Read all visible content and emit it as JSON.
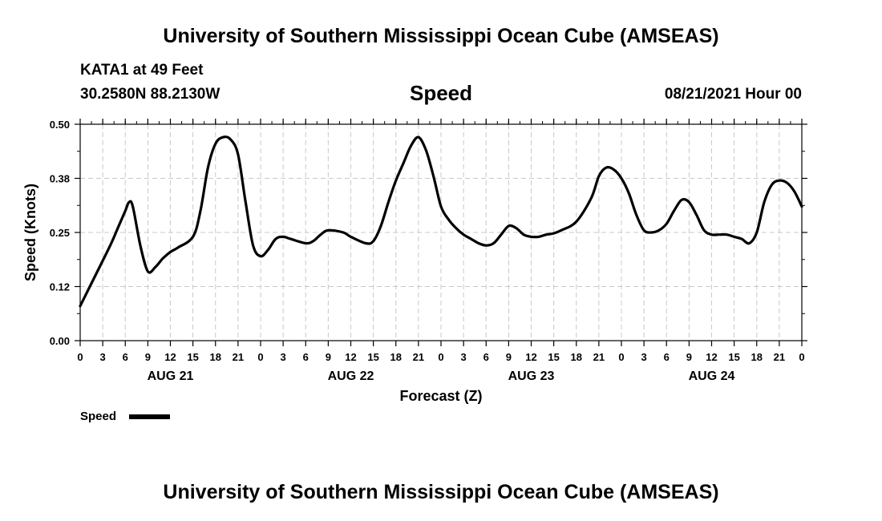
{
  "header": {
    "title": "University of Southern Mississippi Ocean Cube (AMSEAS)",
    "station": "KATA1 at 49 Feet",
    "coords": "30.2580N  88.2130W",
    "variable": "Speed",
    "run": "08/21/2021 Hour 00"
  },
  "footer": {
    "title": "University of Southern Mississippi Ocean Cube (AMSEAS)"
  },
  "legend": {
    "label": "Speed"
  },
  "colors": {
    "line": "#000000",
    "grid": "#c8c8c8",
    "axis": "#000000"
  },
  "chart_data": {
    "type": "line",
    "title": "Speed",
    "xlabel": "Forecast (Z)",
    "ylabel": "Speed (Knots)",
    "ylim": [
      0,
      0.5
    ],
    "xlim": [
      0,
      96
    ],
    "yticks": [
      0.0,
      0.125,
      0.25,
      0.375,
      0.5
    ],
    "ytick_labels": [
      "0.00",
      "0.12",
      "0.25",
      "0.38",
      "0.50"
    ],
    "xticks": [
      0,
      3,
      6,
      9,
      12,
      15,
      18,
      21,
      24,
      27,
      30,
      33,
      36,
      39,
      42,
      45,
      48,
      51,
      54,
      57,
      60,
      63,
      66,
      69,
      72,
      75,
      78,
      81,
      84,
      87,
      90,
      93,
      96
    ],
    "xtick_labels": [
      "0",
      "3",
      "6",
      "9",
      "12",
      "15",
      "18",
      "21",
      "0",
      "3",
      "6",
      "9",
      "12",
      "15",
      "18",
      "21",
      "0",
      "3",
      "6",
      "9",
      "12",
      "15",
      "18",
      "21",
      "0",
      "3",
      "6",
      "9",
      "12",
      "15",
      "18",
      "21",
      "0"
    ],
    "day_labels": [
      {
        "label": "AUG 21",
        "x": 12
      },
      {
        "label": "AUG 22",
        "x": 36
      },
      {
        "label": "AUG 23",
        "x": 60
      },
      {
        "label": "AUG 24",
        "x": 84
      }
    ],
    "grid": true,
    "series": [
      {
        "name": "Speed",
        "x": [
          0,
          2,
          4,
          5,
          6,
          6.5,
          7,
          8,
          9,
          10,
          11,
          12,
          13,
          15,
          16,
          17,
          18,
          19,
          20,
          21,
          22,
          23,
          24,
          25,
          26,
          27,
          28,
          30,
          31,
          32,
          33,
          35,
          36,
          38,
          39,
          40,
          41,
          42,
          43,
          44,
          45,
          46,
          47,
          48,
          49,
          50,
          51,
          52,
          53,
          54,
          55,
          56,
          57,
          58,
          59,
          60,
          61,
          62,
          63,
          64,
          66,
          68,
          69,
          70,
          71,
          72,
          73,
          74,
          75,
          76,
          77,
          78,
          79,
          80,
          81,
          82,
          83,
          84,
          85,
          86,
          87,
          88,
          89,
          90,
          91,
          92,
          93,
          94,
          95,
          96
        ],
        "values": [
          0.08,
          0.15,
          0.22,
          0.26,
          0.3,
          0.32,
          0.31,
          0.22,
          0.16,
          0.17,
          0.19,
          0.205,
          0.215,
          0.24,
          0.3,
          0.4,
          0.455,
          0.47,
          0.465,
          0.43,
          0.32,
          0.22,
          0.195,
          0.21,
          0.235,
          0.24,
          0.235,
          0.225,
          0.23,
          0.245,
          0.255,
          0.25,
          0.24,
          0.225,
          0.23,
          0.265,
          0.32,
          0.37,
          0.41,
          0.45,
          0.47,
          0.44,
          0.38,
          0.31,
          0.28,
          0.26,
          0.245,
          0.235,
          0.225,
          0.22,
          0.225,
          0.245,
          0.265,
          0.26,
          0.245,
          0.24,
          0.24,
          0.245,
          0.248,
          0.255,
          0.275,
          0.33,
          0.38,
          0.4,
          0.395,
          0.375,
          0.34,
          0.29,
          0.255,
          0.25,
          0.255,
          0.27,
          0.3,
          0.325,
          0.32,
          0.29,
          0.255,
          0.245,
          0.245,
          0.245,
          0.24,
          0.235,
          0.225,
          0.25,
          0.32,
          0.36,
          0.37,
          0.365,
          0.345,
          0.31
        ]
      }
    ]
  }
}
